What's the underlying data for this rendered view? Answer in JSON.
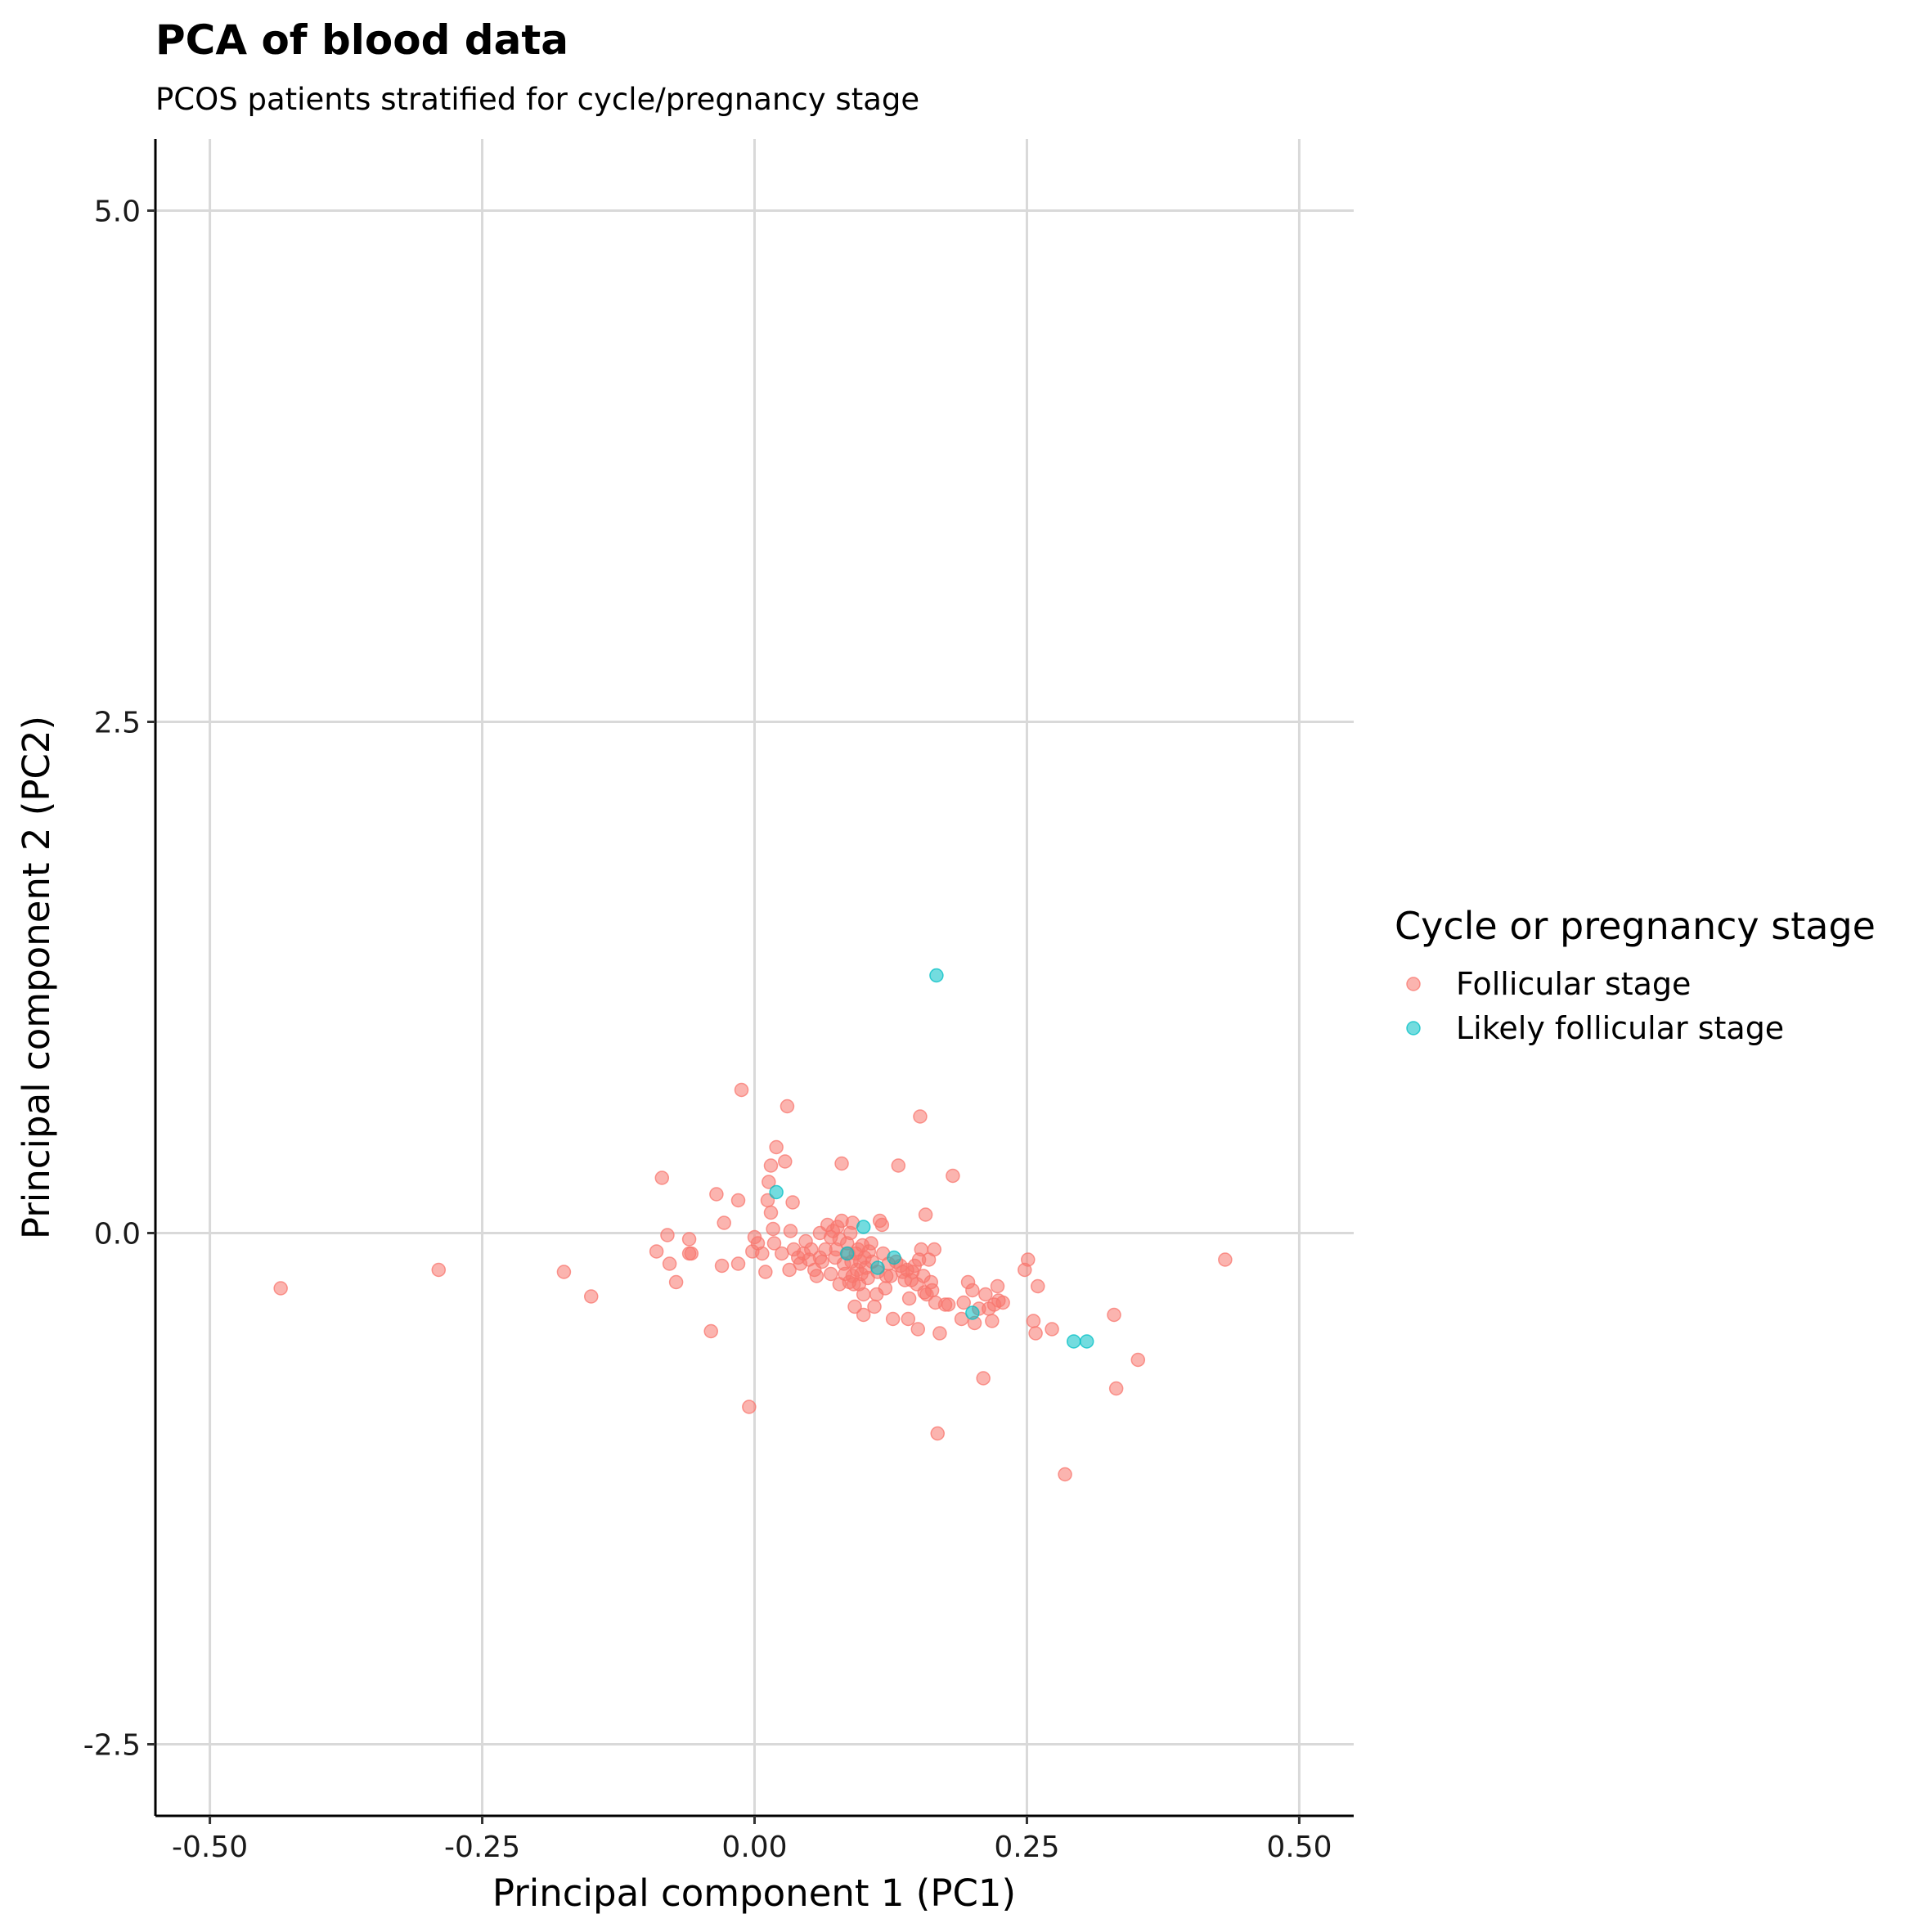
{
  "chart_data": {
    "type": "scatter",
    "title": "PCA of blood data",
    "subtitle": "PCOS patients stratified for cycle/pregnancy stage",
    "xlabel": "Principal component 1 (PC1)",
    "ylabel": "Principal component 2 (PC2)",
    "xlim": [
      -0.55,
      0.55
    ],
    "ylim": [
      -2.85,
      5.35
    ],
    "x_ticks": [
      -0.5,
      -0.25,
      0.0,
      0.25,
      0.5
    ],
    "x_tick_labels": [
      "-0.50",
      "-0.25",
      "0.00",
      "0.25",
      "0.50"
    ],
    "y_ticks": [
      -2.5,
      0.0,
      2.5,
      5.0
    ],
    "y_tick_labels": [
      "-2.5",
      "0.0",
      "2.5",
      "5.0"
    ],
    "grid": true,
    "legend": {
      "title": "Cycle or pregnancy stage",
      "placement": "right"
    },
    "series": [
      {
        "name": "Follicular stage",
        "color": "#F8766D",
        "points": [
          [
            -0.435,
            -0.27
          ],
          [
            -0.29,
            -0.18
          ],
          [
            -0.175,
            -0.19
          ],
          [
            -0.15,
            -0.31
          ],
          [
            -0.085,
            0.27
          ],
          [
            -0.08,
            -0.01
          ],
          [
            -0.078,
            -0.15
          ],
          [
            -0.072,
            -0.24
          ],
          [
            -0.09,
            -0.09
          ],
          [
            -0.06,
            -0.03
          ],
          [
            -0.06,
            -0.1
          ],
          [
            -0.058,
            -0.1
          ],
          [
            -0.04,
            -0.48
          ],
          [
            -0.035,
            0.19
          ],
          [
            -0.03,
            -0.16
          ],
          [
            -0.028,
            0.05
          ],
          [
            -0.015,
            0.16
          ],
          [
            -0.015,
            -0.15
          ],
          [
            -0.012,
            0.7
          ],
          [
            -0.005,
            -0.85
          ],
          [
            -0.002,
            -0.09
          ],
          [
            0.0,
            -0.02
          ],
          [
            0.003,
            -0.05
          ],
          [
            0.007,
            -0.1
          ],
          [
            0.01,
            -0.19
          ],
          [
            0.012,
            0.16
          ],
          [
            0.013,
            0.25
          ],
          [
            0.015,
            0.33
          ],
          [
            0.015,
            0.1
          ],
          [
            0.017,
            0.02
          ],
          [
            0.018,
            -0.05
          ],
          [
            0.02,
            0.42
          ],
          [
            0.025,
            -0.1
          ],
          [
            0.028,
            0.35
          ],
          [
            0.03,
            0.62
          ],
          [
            0.032,
            -0.18
          ],
          [
            0.033,
            0.01
          ],
          [
            0.035,
            0.15
          ],
          [
            0.036,
            -0.08
          ],
          [
            0.04,
            -0.12
          ],
          [
            0.042,
            -0.15
          ],
          [
            0.045,
            -0.1
          ],
          [
            0.047,
            -0.04
          ],
          [
            0.05,
            -0.13
          ],
          [
            0.052,
            -0.08
          ],
          [
            0.055,
            -0.18
          ],
          [
            0.057,
            -0.21
          ],
          [
            0.06,
            -0.12
          ],
          [
            0.06,
            0.0
          ],
          [
            0.062,
            -0.14
          ],
          [
            0.065,
            -0.08
          ],
          [
            0.067,
            0.04
          ],
          [
            0.07,
            -0.2
          ],
          [
            0.07,
            -0.02
          ],
          [
            0.072,
            0.01
          ],
          [
            0.074,
            -0.12
          ],
          [
            0.075,
            -0.08
          ],
          [
            0.076,
            0.03
          ],
          [
            0.078,
            -0.03
          ],
          [
            0.078,
            -0.25
          ],
          [
            0.08,
            0.06
          ],
          [
            0.08,
            0.34
          ],
          [
            0.082,
            -0.15
          ],
          [
            0.083,
            -0.2
          ],
          [
            0.085,
            -0.05
          ],
          [
            0.086,
            -0.1
          ],
          [
            0.087,
            -0.24
          ],
          [
            0.088,
            0.0
          ],
          [
            0.089,
            -0.14
          ],
          [
            0.09,
            0.05
          ],
          [
            0.09,
            -0.21
          ],
          [
            0.091,
            -0.25
          ],
          [
            0.092,
            -0.36
          ],
          [
            0.093,
            -0.1
          ],
          [
            0.094,
            -0.18
          ],
          [
            0.095,
            -0.08
          ],
          [
            0.096,
            -0.25
          ],
          [
            0.097,
            -0.14
          ],
          [
            0.098,
            -0.2
          ],
          [
            0.099,
            -0.06
          ],
          [
            0.1,
            -0.4
          ],
          [
            0.1,
            -0.3
          ],
          [
            0.101,
            -0.12
          ],
          [
            0.102,
            -0.17
          ],
          [
            0.104,
            -0.22
          ],
          [
            0.105,
            -0.09
          ],
          [
            0.107,
            -0.05
          ],
          [
            0.108,
            -0.14
          ],
          [
            0.11,
            -0.36
          ],
          [
            0.112,
            -0.3
          ],
          [
            0.113,
            -0.19
          ],
          [
            0.115,
            0.06
          ],
          [
            0.117,
            0.04
          ],
          [
            0.118,
            -0.1
          ],
          [
            0.12,
            -0.27
          ],
          [
            0.121,
            -0.21
          ],
          [
            0.123,
            -0.15
          ],
          [
            0.125,
            -0.21
          ],
          [
            0.127,
            -0.42
          ],
          [
            0.13,
            -0.14
          ],
          [
            0.132,
            0.33
          ],
          [
            0.134,
            -0.16
          ],
          [
            0.136,
            -0.19
          ],
          [
            0.138,
            -0.23
          ],
          [
            0.14,
            -0.18
          ],
          [
            0.141,
            -0.42
          ],
          [
            0.142,
            -0.32
          ],
          [
            0.144,
            -0.23
          ],
          [
            0.145,
            -0.19
          ],
          [
            0.147,
            -0.16
          ],
          [
            0.149,
            -0.25
          ],
          [
            0.15,
            -0.47
          ],
          [
            0.151,
            -0.13
          ],
          [
            0.152,
            0.57
          ],
          [
            0.153,
            -0.08
          ],
          [
            0.155,
            -0.21
          ],
          [
            0.156,
            -0.29
          ],
          [
            0.157,
            0.09
          ],
          [
            0.158,
            -0.3
          ],
          [
            0.16,
            -0.13
          ],
          [
            0.162,
            -0.24
          ],
          [
            0.163,
            -0.28
          ],
          [
            0.165,
            -0.08
          ],
          [
            0.166,
            -0.34
          ],
          [
            0.168,
            -0.98
          ],
          [
            0.17,
            -0.49
          ],
          [
            0.175,
            -0.35
          ],
          [
            0.178,
            -0.35
          ],
          [
            0.182,
            0.28
          ],
          [
            0.19,
            -0.42
          ],
          [
            0.192,
            -0.34
          ],
          [
            0.196,
            -0.24
          ],
          [
            0.2,
            -0.28
          ],
          [
            0.202,
            -0.44
          ],
          [
            0.206,
            -0.37
          ],
          [
            0.21,
            -0.71
          ],
          [
            0.212,
            -0.3
          ],
          [
            0.215,
            -0.37
          ],
          [
            0.218,
            -0.43
          ],
          [
            0.22,
            -0.35
          ],
          [
            0.223,
            -0.26
          ],
          [
            0.224,
            -0.33
          ],
          [
            0.228,
            -0.34
          ],
          [
            0.248,
            -0.18
          ],
          [
            0.251,
            -0.13
          ],
          [
            0.256,
            -0.43
          ],
          [
            0.258,
            -0.49
          ],
          [
            0.26,
            -0.26
          ],
          [
            0.273,
            -0.47
          ],
          [
            0.285,
            -1.18
          ],
          [
            0.33,
            -0.4
          ],
          [
            0.332,
            -0.76
          ],
          [
            0.352,
            -0.62
          ],
          [
            0.432,
            -0.13
          ]
        ]
      },
      {
        "name": "Likely follicular stage",
        "color": "#00BFC4",
        "points": [
          [
            0.02,
            0.2
          ],
          [
            0.1,
            0.03
          ],
          [
            0.085,
            -0.1
          ],
          [
            0.113,
            -0.17
          ],
          [
            0.128,
            -0.12
          ],
          [
            0.167,
            1.26
          ],
          [
            0.2,
            -0.39
          ],
          [
            0.293,
            -0.53
          ],
          [
            0.305,
            -0.53
          ]
        ]
      }
    ]
  }
}
